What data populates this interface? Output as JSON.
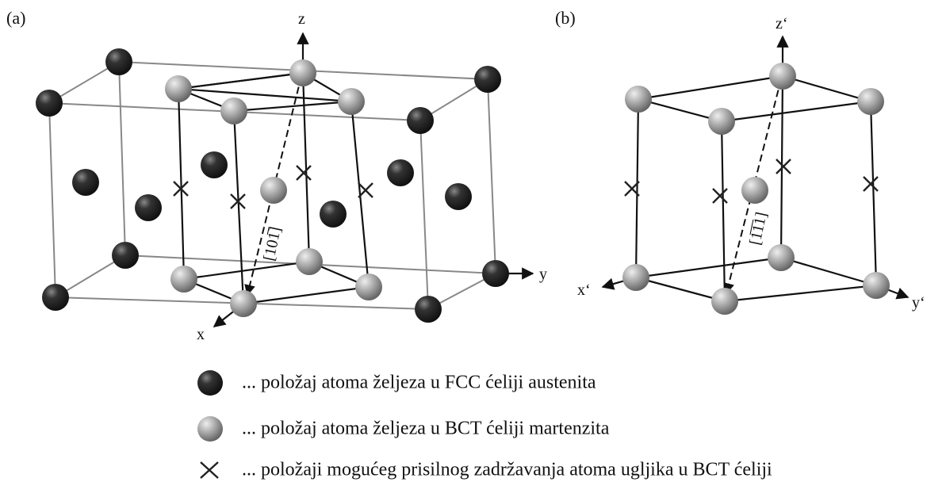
{
  "panels": [
    {
      "label": "(a)",
      "axes": {
        "x": "x",
        "y": "y",
        "z": "z"
      },
      "direction": "[101̅]"
    },
    {
      "label": "(b)",
      "axes": {
        "x": "x‘",
        "y": "y‘",
        "z": "z‘"
      },
      "direction": "[1̅1̅1]"
    }
  ],
  "legend": [
    {
      "text": "... položaj atoma željeza u FCC ćeliji austenita"
    },
    {
      "text": "... položaj atoma željeza u BCT ćeliji martenzita"
    },
    {
      "text": "... položaji mogućeg  prisilnog zadržavanja atoma ugljika u BCT ćeliji"
    }
  ]
}
